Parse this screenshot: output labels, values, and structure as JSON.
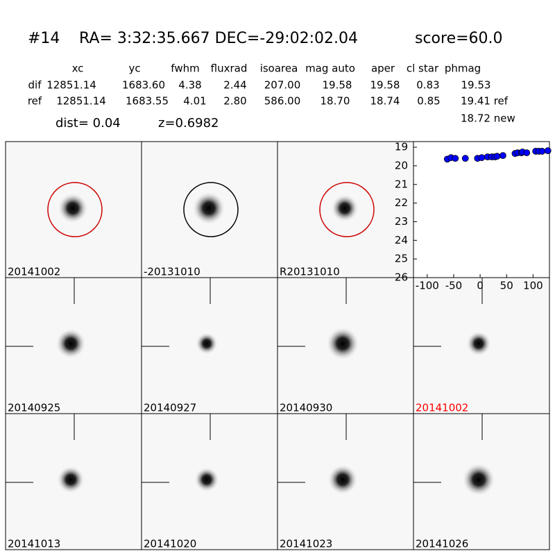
{
  "header": {
    "id": "#14",
    "coords": "RA= 3:32:35.667 DEC=-29:02:02.04",
    "score": "score=60.0"
  },
  "table": {
    "columns": [
      "xc",
      "yc",
      "fwhm",
      "fluxrad",
      "isoarea",
      "mag auto",
      "aper",
      "cl star",
      "phmag"
    ],
    "rows": [
      [
        "dif",
        "12851.14",
        "1683.60",
        "4.38",
        "2.44",
        "207.00",
        "19.58",
        "19.58",
        "0.83",
        "19.53"
      ],
      [
        "ref",
        "12851.14",
        "1683.55",
        "4.01",
        "2.80",
        "586.00",
        "18.70",
        "18.74",
        "0.85",
        "19.41 ref"
      ]
    ],
    "extra": "18.72 new",
    "dist": "dist=  0.04",
    "z": "z=0.6982"
  },
  "panels": [
    {
      "label": "20141002",
      "circle": "#cc0000"
    },
    {
      "label": "-20131010",
      "circle": "#000000"
    },
    {
      "label": "R20131010",
      "circle": "#cc0000"
    },
    {
      "label": "20140925"
    },
    {
      "label": "20140927"
    },
    {
      "label": "20140930"
    },
    {
      "label": "20141002",
      "color": "#ff0000"
    },
    {
      "label": "20141013"
    },
    {
      "label": "20141020"
    },
    {
      "label": "20141023"
    },
    {
      "label": "20141026"
    }
  ],
  "chart_data": {
    "type": "scatter",
    "color": "#0000ff",
    "x": [
      -62,
      -55,
      -47,
      -28,
      -5,
      3,
      14,
      22,
      28,
      32,
      43,
      66,
      71,
      78,
      80,
      88,
      105,
      111,
      117,
      128
    ],
    "values": [
      19.64,
      19.56,
      19.6,
      19.6,
      19.6,
      19.56,
      19.52,
      19.52,
      19.52,
      19.49,
      19.45,
      19.34,
      19.3,
      19.3,
      19.26,
      19.3,
      19.22,
      19.22,
      19.22,
      19.19
    ],
    "xlim": [
      -126,
      131
    ],
    "xticks": [
      -100,
      -50,
      0,
      50,
      100
    ],
    "ylim": [
      18.7,
      26
    ],
    "yticks": [
      19,
      20,
      21,
      22,
      23,
      24,
      25,
      26
    ],
    "y_inverted": true
  }
}
